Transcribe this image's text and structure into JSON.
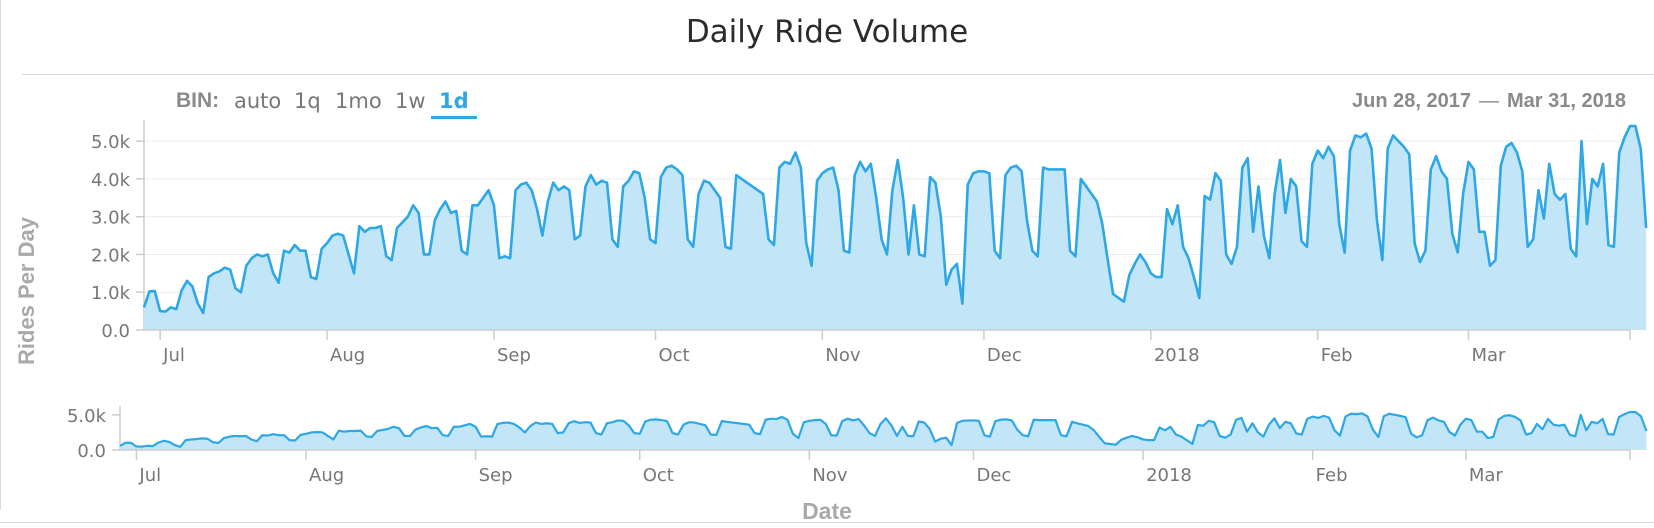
{
  "header": {
    "title": "Daily Ride Volume",
    "bin_label": "BIN:",
    "bin_options": [
      {
        "label": "auto",
        "active": false
      },
      {
        "label": "1q",
        "active": false
      },
      {
        "label": "1mo",
        "active": false
      },
      {
        "label": "1w",
        "active": false
      },
      {
        "label": "1d",
        "active": true
      }
    ],
    "range_start": "Jun 28, 2017",
    "range_sep": "—",
    "range_end": "Mar 31, 2018"
  },
  "colors": {
    "line": "#2da7e6",
    "fill": "#c2e5f8",
    "axis": "#cccccc",
    "grid": "#ececec",
    "text": "#777777"
  },
  "chart_data": {
    "type": "area",
    "title": "Daily Ride Volume",
    "xlabel": "Date",
    "ylabel": "Rides Per Day",
    "x_start": "2017-06-28",
    "x_end": "2018-03-31",
    "ylim": [
      0,
      5400
    ],
    "main_yticks": [
      "0.0",
      "1.0k",
      "2.0k",
      "3.0k",
      "4.0k",
      "5.0k"
    ],
    "navigator_yticks": [
      "0.0",
      "5.0k"
    ],
    "xticks": [
      {
        "label": "Jul",
        "date": "2017-07-01"
      },
      {
        "label": "Aug",
        "date": "2017-08-01"
      },
      {
        "label": "Sep",
        "date": "2017-09-01"
      },
      {
        "label": "Oct",
        "date": "2017-10-01"
      },
      {
        "label": "Nov",
        "date": "2017-11-01"
      },
      {
        "label": "Dec",
        "date": "2017-12-01"
      },
      {
        "label": "2018",
        "date": "2018-01-01"
      },
      {
        "label": "Feb",
        "date": "2018-02-01"
      },
      {
        "label": "Mar",
        "date": "2018-03-01"
      }
    ],
    "grid": true,
    "series": [
      {
        "values": [
          600,
          1020,
          1030,
          500,
          490,
          600,
          550,
          1050,
          1300,
          1150,
          700,
          450,
          1400,
          1500,
          1550,
          1650,
          1600,
          1100,
          1000,
          1700,
          1900,
          2000,
          1950,
          2000,
          1500,
          1250,
          2100,
          2050,
          2250,
          2100,
          2100,
          1400,
          1350,
          2150,
          2300,
          2500,
          2550,
          2500,
          2000,
          1500,
          2750,
          2600,
          2700,
          2700,
          2750,
          1950,
          1850,
          2700,
          2850,
          3000,
          3300,
          3100,
          2000,
          2000,
          2900,
          3200,
          3400,
          3100,
          3150,
          2100,
          2000,
          3300,
          3300,
          3500,
          3700,
          3300,
          1900,
          1950,
          1900,
          3700,
          3850,
          3900,
          3700,
          3200,
          2500,
          3400,
          3900,
          3700,
          3800,
          3700,
          2400,
          2500,
          3800,
          4100,
          3850,
          3950,
          3900,
          2400,
          2200,
          3800,
          3950,
          4200,
          4150,
          3500,
          2400,
          2300,
          4050,
          4300,
          4350,
          4250,
          4100,
          2400,
          2200,
          3600,
          3950,
          3900,
          3700,
          3500,
          2200,
          2150,
          4100,
          4000,
          3900,
          3800,
          3700,
          3600,
          2400,
          2250,
          4300,
          4450,
          4400,
          4700,
          4300,
          2300,
          1700,
          3950,
          4150,
          4250,
          4300,
          3700,
          2100,
          2050,
          4100,
          4450,
          4200,
          4400,
          3500,
          2400,
          2000,
          3700,
          4500,
          3500,
          2000,
          3300,
          2000,
          1950,
          4050,
          3900,
          3000,
          1200,
          1600,
          1750,
          700,
          3850,
          4150,
          4200,
          4200,
          4150,
          2100,
          1900,
          4100,
          4300,
          4350,
          4200,
          2900,
          2100,
          1950,
          4300,
          4250,
          4250,
          4250,
          4250,
          2100,
          1950,
          4000,
          3800,
          3600,
          3400,
          2800,
          1850,
          950,
          850,
          750,
          1450,
          1750,
          2000,
          1800,
          1500,
          1400,
          1400,
          3200,
          2800,
          3300,
          2200,
          1900,
          1400,
          850,
          3550,
          3450,
          4150,
          3950,
          2000,
          1750,
          2200,
          4300,
          4550,
          2600,
          3800,
          2500,
          1900,
          3600,
          4500,
          3100,
          4000,
          3800,
          2350,
          2200,
          4400,
          4750,
          4550,
          4850,
          4600,
          2800,
          2050,
          4750,
          5150,
          5100,
          5200,
          4800,
          2900,
          1850,
          4800,
          5150,
          5000,
          4850,
          4650,
          2300,
          1800,
          2100,
          4250,
          4600,
          4200,
          4000,
          2550,
          2050,
          3600,
          4450,
          4250,
          2600,
          2600,
          1700,
          1850,
          4350,
          4850,
          4950,
          4700,
          4200,
          2200,
          2400,
          3700,
          2950,
          4400,
          3600,
          3450,
          3600,
          2150,
          1950,
          5000,
          2800,
          4000,
          3800,
          4400,
          2250,
          2200,
          4700,
          5100,
          5400,
          5400,
          4800,
          2700
        ]
      }
    ]
  }
}
